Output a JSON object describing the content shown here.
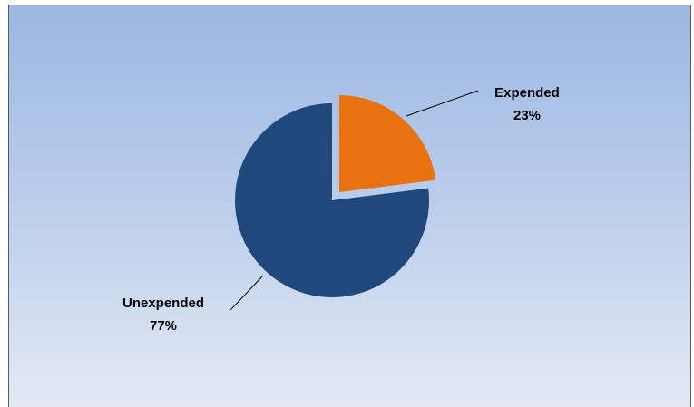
{
  "chart_data": {
    "type": "pie",
    "title": "",
    "slices": [
      {
        "label": "Expended",
        "value": 23,
        "value_label": "23%",
        "color": "#e8720f",
        "exploded": true
      },
      {
        "label": "Unexpended",
        "value": 77,
        "value_label": "77%",
        "color": "#1f497d",
        "exploded": false
      }
    ],
    "legend": "none",
    "background": "gradient light blue"
  }
}
